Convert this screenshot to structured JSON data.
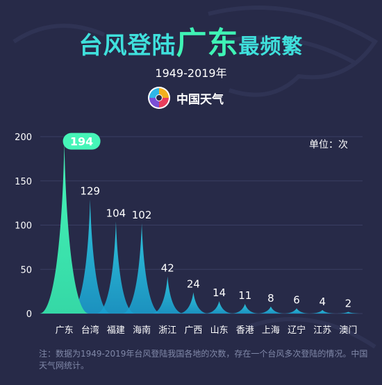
{
  "header": {
    "title_part1": "台风登陆",
    "title_part2": "广东",
    "title_part3": "最频繁",
    "period": "1949-2019年",
    "brand": "中国天气"
  },
  "unit_label": "单位：次",
  "note": "注：数据为1949-2019年台风登陆我国各地的次数，存在一个台风多次登陆的情况。中国天气网统计。",
  "colors": {
    "background": "#272a48",
    "title": "#3fe0dc",
    "highlight": "#3ff3b5",
    "peak": "#1ec8e6",
    "note": "#8088a8"
  },
  "chart_data": {
    "type": "area",
    "categories": [
      "广东",
      "台湾",
      "福建",
      "海南",
      "浙江",
      "广西",
      "山东",
      "香港",
      "上海",
      "辽宁",
      "江苏",
      "澳门"
    ],
    "values": [
      194,
      129,
      104,
      102,
      42,
      24,
      14,
      11,
      8,
      6,
      4,
      2
    ],
    "highlight_index": 0,
    "ylim": [
      0,
      200
    ],
    "yticks": [
      0,
      50,
      100,
      150,
      200
    ],
    "grid": true
  }
}
